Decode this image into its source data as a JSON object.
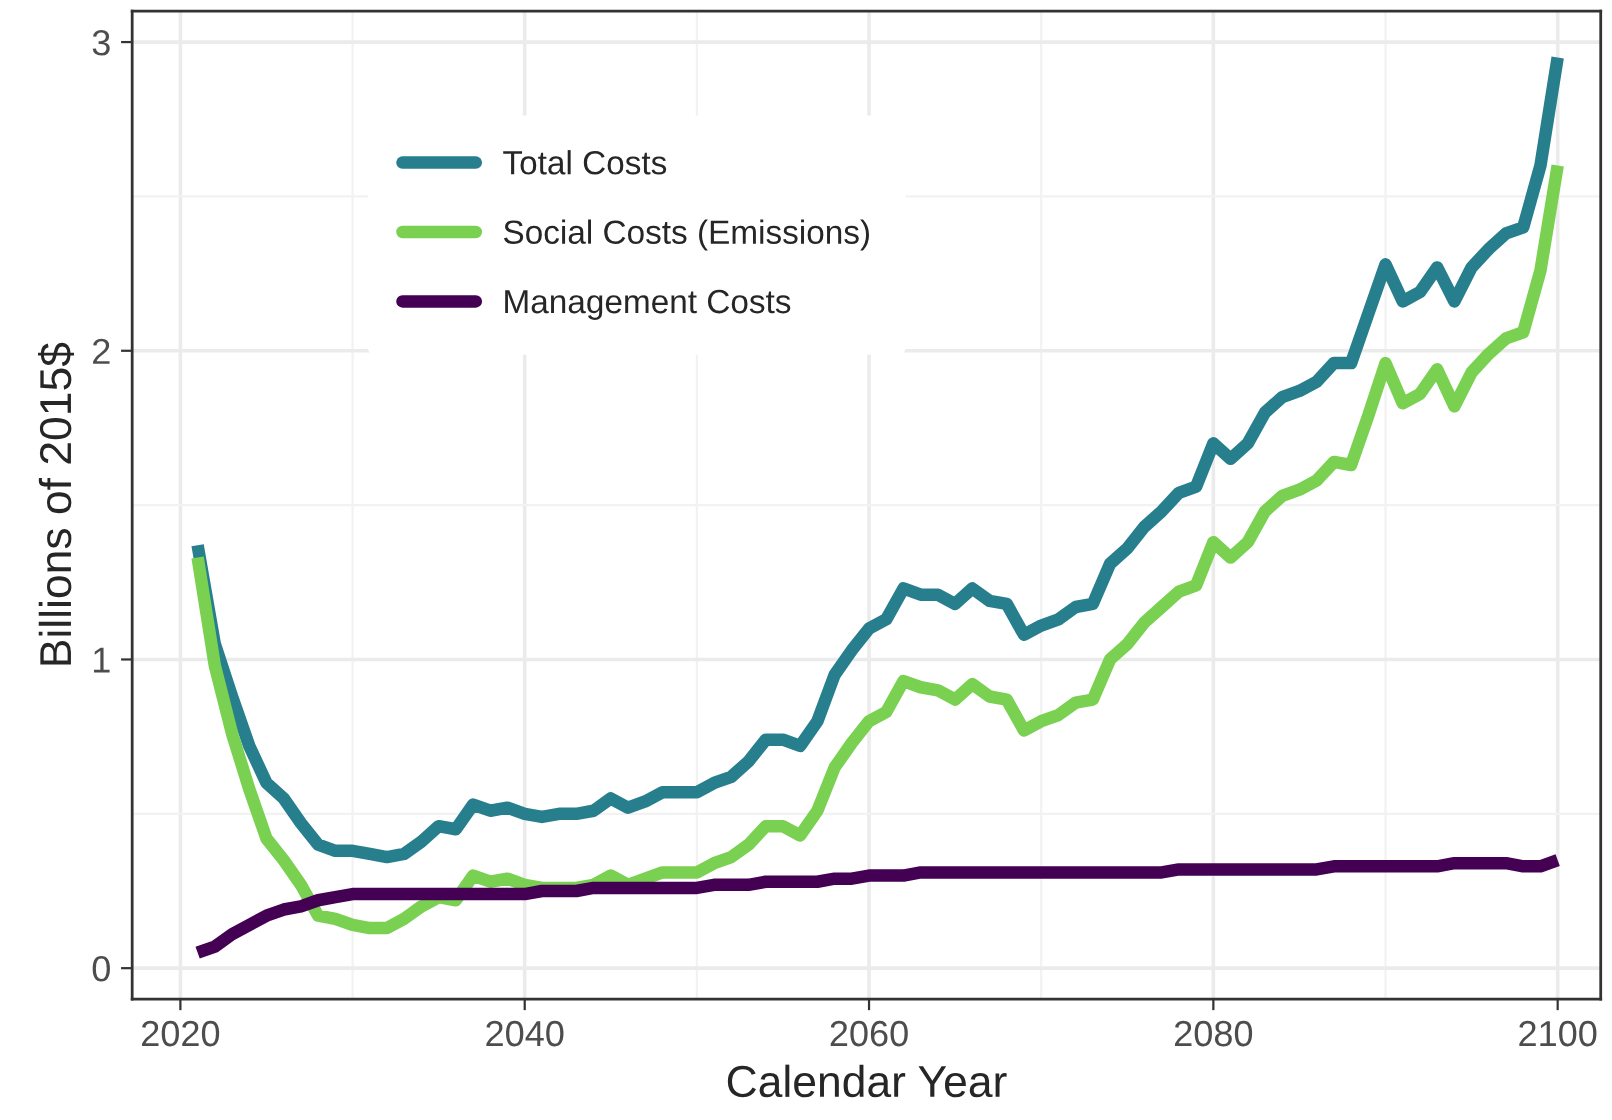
{
  "chart_data": {
    "type": "line",
    "xlabel": "Calendar Year",
    "ylabel": "Billions of 2015$",
    "x": [
      2021,
      2022,
      2023,
      2024,
      2025,
      2026,
      2027,
      2028,
      2029,
      2030,
      2031,
      2032,
      2033,
      2034,
      2035,
      2036,
      2037,
      2038,
      2039,
      2040,
      2041,
      2042,
      2043,
      2044,
      2045,
      2046,
      2047,
      2048,
      2049,
      2050,
      2051,
      2052,
      2053,
      2054,
      2055,
      2056,
      2057,
      2058,
      2059,
      2060,
      2061,
      2062,
      2063,
      2064,
      2065,
      2066,
      2067,
      2068,
      2069,
      2070,
      2071,
      2072,
      2073,
      2074,
      2075,
      2076,
      2077,
      2078,
      2079,
      2080,
      2081,
      2082,
      2083,
      2084,
      2085,
      2086,
      2087,
      2088,
      2089,
      2090,
      2091,
      2092,
      2093,
      2094,
      2095,
      2096,
      2097,
      2098,
      2099,
      2100
    ],
    "series": [
      {
        "name": "Total Costs",
        "color": "#277f8e",
        "values": [
          1.37,
          1.05,
          0.88,
          0.72,
          0.6,
          0.55,
          0.47,
          0.4,
          0.38,
          0.38,
          0.37,
          0.36,
          0.37,
          0.41,
          0.46,
          0.45,
          0.53,
          0.51,
          0.52,
          0.5,
          0.49,
          0.5,
          0.5,
          0.51,
          0.55,
          0.52,
          0.54,
          0.57,
          0.57,
          0.57,
          0.6,
          0.62,
          0.67,
          0.74,
          0.74,
          0.72,
          0.8,
          0.95,
          1.03,
          1.1,
          1.13,
          1.23,
          1.21,
          1.21,
          1.18,
          1.23,
          1.19,
          1.18,
          1.08,
          1.11,
          1.13,
          1.17,
          1.18,
          1.31,
          1.36,
          1.43,
          1.48,
          1.54,
          1.56,
          1.7,
          1.65,
          1.7,
          1.8,
          1.85,
          1.87,
          1.9,
          1.96,
          1.96,
          2.12,
          2.28,
          2.16,
          2.19,
          2.27,
          2.16,
          2.27,
          2.33,
          2.38,
          2.4,
          2.6,
          2.95
        ]
      },
      {
        "name": "Social Costs (Emissions)",
        "color": "#7ad151",
        "values": [
          1.33,
          0.98,
          0.76,
          0.58,
          0.42,
          0.35,
          0.27,
          0.17,
          0.16,
          0.14,
          0.13,
          0.13,
          0.16,
          0.2,
          0.23,
          0.22,
          0.3,
          0.28,
          0.29,
          0.27,
          0.26,
          0.26,
          0.26,
          0.27,
          0.3,
          0.27,
          0.29,
          0.31,
          0.31,
          0.31,
          0.34,
          0.36,
          0.4,
          0.46,
          0.46,
          0.43,
          0.51,
          0.65,
          0.73,
          0.8,
          0.83,
          0.93,
          0.91,
          0.9,
          0.87,
          0.92,
          0.88,
          0.87,
          0.77,
          0.8,
          0.82,
          0.86,
          0.87,
          1.0,
          1.05,
          1.12,
          1.17,
          1.22,
          1.24,
          1.38,
          1.33,
          1.38,
          1.48,
          1.53,
          1.55,
          1.58,
          1.64,
          1.63,
          1.79,
          1.96,
          1.83,
          1.86,
          1.94,
          1.82,
          1.93,
          1.99,
          2.04,
          2.06,
          2.26,
          2.6
        ]
      },
      {
        "name": "Management Costs",
        "color": "#440154",
        "values": [
          0.05,
          0.07,
          0.11,
          0.14,
          0.17,
          0.19,
          0.2,
          0.22,
          0.23,
          0.24,
          0.24,
          0.24,
          0.24,
          0.24,
          0.24,
          0.24,
          0.24,
          0.24,
          0.24,
          0.24,
          0.25,
          0.25,
          0.25,
          0.26,
          0.26,
          0.26,
          0.26,
          0.26,
          0.26,
          0.26,
          0.27,
          0.27,
          0.27,
          0.28,
          0.28,
          0.28,
          0.28,
          0.29,
          0.29,
          0.3,
          0.3,
          0.3,
          0.31,
          0.31,
          0.31,
          0.31,
          0.31,
          0.31,
          0.31,
          0.31,
          0.31,
          0.31,
          0.31,
          0.31,
          0.31,
          0.31,
          0.31,
          0.32,
          0.32,
          0.32,
          0.32,
          0.32,
          0.32,
          0.32,
          0.32,
          0.32,
          0.33,
          0.33,
          0.33,
          0.33,
          0.33,
          0.33,
          0.33,
          0.34,
          0.34,
          0.34,
          0.34,
          0.33,
          0.33,
          0.35
        ]
      }
    ],
    "xlim": [
      2017.2,
      2102.5
    ],
    "xticks": [
      2020,
      2040,
      2060,
      2080,
      2100
    ],
    "ylim": [
      -0.1,
      3.1
    ],
    "yticks": [
      0,
      1,
      2,
      3
    ],
    "grid": true,
    "legend": "top left"
  }
}
